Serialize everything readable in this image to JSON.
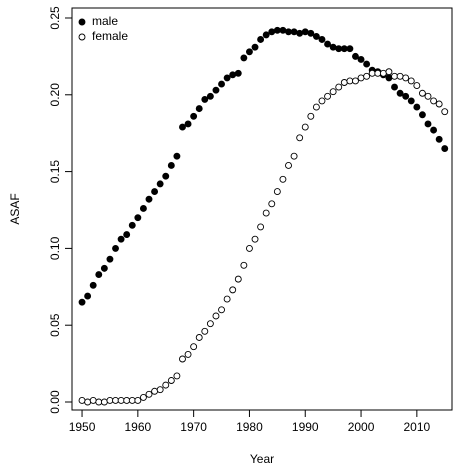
{
  "chart_data": {
    "type": "scatter",
    "xlabel": "Year",
    "ylabel": "ASAF",
    "x": [
      1950,
      1951,
      1952,
      1953,
      1954,
      1955,
      1956,
      1957,
      1958,
      1959,
      1960,
      1961,
      1962,
      1963,
      1964,
      1965,
      1966,
      1967,
      1968,
      1969,
      1970,
      1971,
      1972,
      1973,
      1974,
      1975,
      1976,
      1977,
      1978,
      1979,
      1980,
      1981,
      1982,
      1983,
      1984,
      1985,
      1986,
      1987,
      1988,
      1989,
      1990,
      1991,
      1992,
      1993,
      1994,
      1995,
      1996,
      1997,
      1998,
      1999,
      2000,
      2001,
      2002,
      2003,
      2004,
      2005,
      2006,
      2007,
      2008,
      2009,
      2010,
      2011,
      2012,
      2013,
      2014,
      2015
    ],
    "series": [
      {
        "name": "male",
        "color": "#000000",
        "fill": true,
        "values": [
          0.065,
          0.069,
          0.076,
          0.083,
          0.087,
          0.093,
          0.1,
          0.106,
          0.109,
          0.115,
          0.12,
          0.126,
          0.132,
          0.137,
          0.142,
          0.147,
          0.154,
          0.16,
          0.179,
          0.181,
          0.186,
          0.191,
          0.197,
          0.199,
          0.203,
          0.207,
          0.211,
          0.213,
          0.214,
          0.224,
          0.228,
          0.231,
          0.236,
          0.239,
          0.241,
          0.242,
          0.242,
          0.241,
          0.241,
          0.24,
          0.241,
          0.24,
          0.238,
          0.236,
          0.233,
          0.231,
          0.23,
          0.23,
          0.23,
          0.225,
          0.223,
          0.22,
          0.216,
          0.215,
          0.213,
          0.211,
          0.205,
          0.201,
          0.199,
          0.196,
          0.192,
          0.187,
          0.181,
          0.177,
          0.171,
          0.165
        ]
      },
      {
        "name": "female",
        "color": "#000000",
        "fill": false,
        "values": [
          0.001,
          0,
          0.001,
          0,
          0,
          0.001,
          0.001,
          0.001,
          0.001,
          0.001,
          0.001,
          0.003,
          0.005,
          0.007,
          0.008,
          0.011,
          0.014,
          0.017,
          0.028,
          0.031,
          0.036,
          0.042,
          0.046,
          0.051,
          0.056,
          0.06,
          0.067,
          0.073,
          0.08,
          0.089,
          0.1,
          0.106,
          0.114,
          0.123,
          0.129,
          0.137,
          0.145,
          0.154,
          0.16,
          0.172,
          0.179,
          0.186,
          0.192,
          0.196,
          0.199,
          0.202,
          0.205,
          0.208,
          0.209,
          0.209,
          0.211,
          0.212,
          0.214,
          0.214,
          0.214,
          0.215,
          0.212,
          0.212,
          0.211,
          0.209,
          0.206,
          0.201,
          0.199,
          0.196,
          0.194,
          0.189
        ]
      }
    ],
    "xlim": [
      1948.2,
      2016.3
    ],
    "xticks": [
      1950,
      1960,
      1970,
      1980,
      1990,
      2000,
      2010
    ],
    "ylim": [
      -0.0052,
      0.2565
    ],
    "yticks": [
      {
        "value": 0,
        "label": "0.00"
      },
      0.05,
      {
        "value": 0.1,
        "label": "0.10"
      },
      0.15,
      {
        "value": 0.2,
        "label": "0.20"
      },
      0.25
    ],
    "legend": "top-left"
  }
}
